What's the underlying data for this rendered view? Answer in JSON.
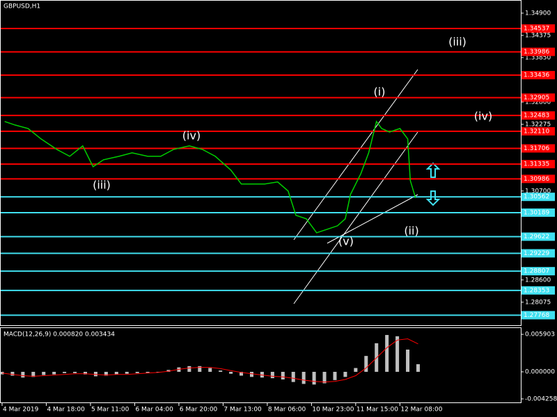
{
  "chart_data": [
    {
      "type": "line",
      "title": "GBPUSD,H1",
      "xlim": [
        -0.8,
        199.5
      ],
      "ylim": [
        1.2753,
        1.3521
      ],
      "xticks": [
        {
          "value": 0,
          "label": "4 Mar 2019"
        },
        {
          "value": 17,
          "label": "4 Mar 18:00"
        },
        {
          "value": 34,
          "label": "5 Mar 11:00"
        },
        {
          "value": 51,
          "label": "6 Mar 04:00"
        },
        {
          "value": 68,
          "label": "6 Mar 20:00"
        },
        {
          "value": 85,
          "label": "7 Mar 13:00"
        },
        {
          "value": 102,
          "label": "8 Mar 06:00"
        },
        {
          "value": 119,
          "label": "10 Mar 23:00"
        },
        {
          "value": 136,
          "label": "11 Mar 15:00"
        },
        {
          "value": 153,
          "label": "12 Mar 08:00"
        }
      ],
      "yticks": [
        {
          "value": 1.349,
          "label": "1.34900"
        },
        {
          "value": 1.34375,
          "label": "1.34375"
        },
        {
          "value": 1.3385,
          "label": "1.33850"
        },
        {
          "value": 1.328,
          "label": "1.32800"
        },
        {
          "value": 1.32275,
          "label": "1.32275"
        },
        {
          "value": 1.307,
          "label": "1.30700"
        },
        {
          "value": 1.286,
          "label": "1.28600"
        },
        {
          "value": 1.28075,
          "label": "1.28075"
        }
      ],
      "levels": [
        {
          "value": 1.34537,
          "label": "1.34537",
          "color": "#ff0000"
        },
        {
          "value": 1.33986,
          "label": "1.33986",
          "color": "#ff0000"
        },
        {
          "value": 1.33436,
          "label": "1.33436",
          "color": "#ff0000"
        },
        {
          "value": 1.32905,
          "label": "1.32905",
          "color": "#ff0000"
        },
        {
          "value": 1.32483,
          "label": "1.32483",
          "color": "#ff0000"
        },
        {
          "value": 1.3211,
          "label": "1.32110",
          "color": "#ff0000"
        },
        {
          "value": 1.31706,
          "label": "1.31706",
          "color": "#ff0000"
        },
        {
          "value": 1.31335,
          "label": "1.31335",
          "color": "#ff0000"
        },
        {
          "value": 1.30986,
          "label": "1.30986",
          "color": "#ff0000"
        },
        {
          "value": 1.30562,
          "label": "1.30562",
          "color": "#40e0f0"
        },
        {
          "value": 1.30189,
          "label": "1.30189",
          "color": "#40e0f0"
        },
        {
          "value": 1.29622,
          "label": "1.29622",
          "color": "#40e0f0"
        },
        {
          "value": 1.29229,
          "label": "1.29229",
          "color": "#40e0f0"
        },
        {
          "value": 1.28807,
          "label": "1.28807",
          "color": "#40e0f0"
        },
        {
          "value": 1.28353,
          "label": "1.28353",
          "color": "#40e0f0"
        },
        {
          "value": 1.27768,
          "label": "1.27768",
          "color": "#40e0f0"
        }
      ],
      "series": [
        {
          "color": "#00d000",
          "x": [
            1,
            5,
            10,
            15,
            21,
            26,
            31,
            35,
            39,
            45,
            50,
            56,
            61,
            66,
            72,
            77,
            82,
            88,
            92,
            96,
            101,
            106,
            110,
            113,
            117,
            121,
            125,
            129,
            132,
            134,
            138,
            141,
            144,
            146,
            149,
            153,
            156,
            157,
            159
          ],
          "values": [
            1.32341,
            1.32258,
            1.32176,
            1.3193,
            1.31684,
            1.3152,
            1.31766,
            1.31274,
            1.31438,
            1.3152,
            1.31602,
            1.3152,
            1.3152,
            1.31684,
            1.31766,
            1.31684,
            1.3152,
            1.31192,
            1.30864,
            1.30864,
            1.30864,
            1.30913,
            1.307,
            1.30126,
            1.30044,
            1.29715,
            1.29797,
            1.29879,
            1.30044,
            1.30618,
            1.3111,
            1.31602,
            1.32341,
            1.32176,
            1.32094,
            1.32176,
            1.3193,
            1.30946,
            1.30536
          ]
        }
      ],
      "annotations": [
        "(i)",
        "(ii)",
        "(iii)",
        "(iv)",
        "(v)",
        "(iii)",
        "(iv)"
      ]
    },
    {
      "type": "bar",
      "title": "MACD(12,26,9) 0.000820 0.003434",
      "xlim": [
        -0.8,
        199.5
      ],
      "ylim": [
        -0.00492,
        0.007
      ],
      "yticks": [
        {
          "value": 0.005903,
          "label": "0.005903"
        },
        {
          "value": 0,
          "label": "0.000000"
        },
        {
          "value": -0.004258,
          "label": "-0.004258"
        }
      ],
      "x": [
        0,
        4,
        8,
        12,
        16,
        20,
        24,
        28,
        32,
        36,
        40,
        44,
        48,
        52,
        56,
        60,
        64,
        68,
        72,
        76,
        80,
        84,
        88,
        92,
        96,
        100,
        104,
        108,
        112,
        116,
        120,
        124,
        128,
        132,
        136,
        140,
        144,
        148,
        152,
        156,
        160
      ],
      "values": [
        -0.0004,
        -0.0006,
        -0.0009,
        -0.0008,
        -0.0005,
        -0.0004,
        -0.0002,
        -0.0002,
        -0.0004,
        -0.0007,
        -0.0006,
        -0.0004,
        -0.0003,
        -0.0002,
        -0.0002,
        0,
        0.0003,
        0.0007,
        0.0009,
        0.0009,
        0.0006,
        0.0002,
        -0.0003,
        -0.0006,
        -0.0008,
        -0.0009,
        -0.001,
        -0.0012,
        -0.0016,
        -0.0019,
        -0.002,
        -0.0018,
        -0.0013,
        -0.0008,
        0.0006,
        0.0025,
        0.0045,
        0.0058,
        0.0056,
        0.0035,
        0.0012
      ],
      "color": "#c0c0c0",
      "signal": {
        "color": "#ff0000",
        "values": [
          -0.0002,
          -0.0004,
          -0.0006,
          -0.0007,
          -0.0006,
          -0.0005,
          -0.0004,
          -0.0003,
          -0.0003,
          -0.0004,
          -0.0005,
          -0.0004,
          -0.0004,
          -0.0003,
          -0.0002,
          -0.0001,
          0.0001,
          0.0004,
          0.0006,
          0.0007,
          0.0007,
          0.0005,
          0.0002,
          -0.0001,
          -0.0003,
          -0.0005,
          -0.0007,
          -0.0008,
          -0.001,
          -0.0013,
          -0.0015,
          -0.0016,
          -0.0015,
          -0.0012,
          -0.0006,
          0.0006,
          0.0022,
          0.0038,
          0.005,
          0.0052,
          0.0044
        ]
      }
    }
  ]
}
